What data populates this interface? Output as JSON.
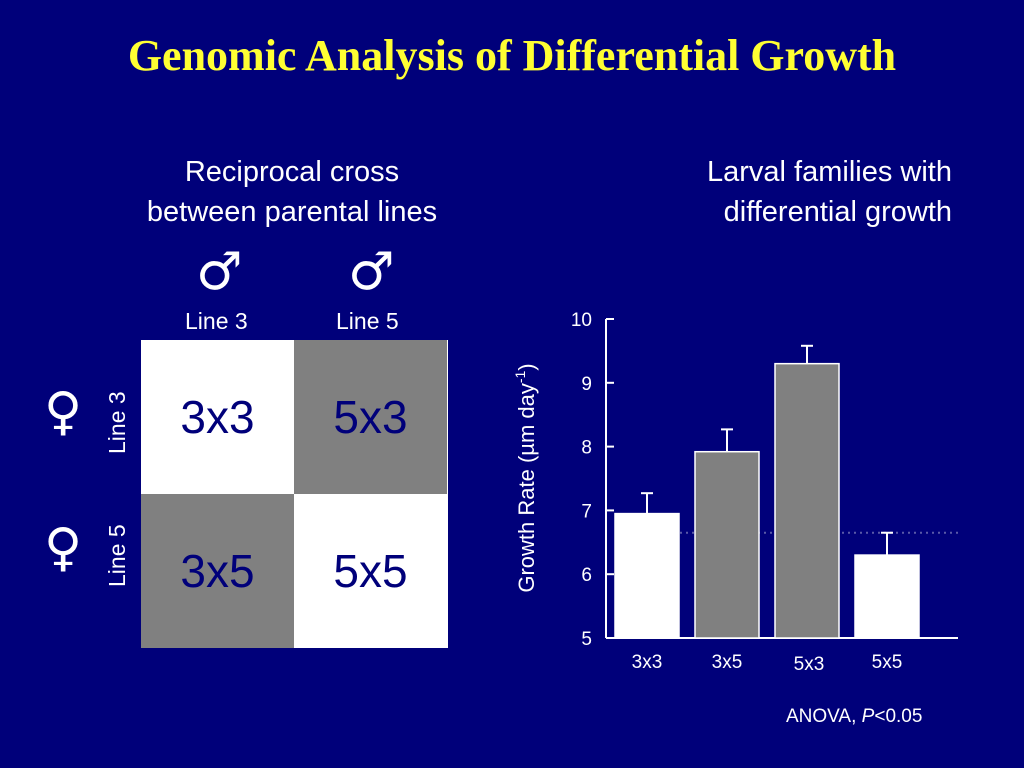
{
  "title": "Genomic Analysis of Differential Growth",
  "left_panel": {
    "subtitle_line1": "Reciprocal cross",
    "subtitle_line2": "between parental lines",
    "male_symbol": "♂",
    "female_symbol": "♀",
    "col_labels": [
      "Line 3",
      "Line 5"
    ],
    "row_labels": [
      "Line 3",
      "Line 5"
    ],
    "cells": [
      {
        "label": "3x3",
        "shade": "white"
      },
      {
        "label": "5x3",
        "shade": "gray"
      },
      {
        "label": "3x5",
        "shade": "gray"
      },
      {
        "label": "5x5",
        "shade": "white"
      }
    ]
  },
  "right_panel": {
    "subtitle_line1": "Larval families with",
    "subtitle_line2": "differential growth",
    "ylabel_text": "Growth Rate (µm day",
    "ylabel_sup": "-1",
    "ylabel_close": ")"
  },
  "chart_data": {
    "type": "bar",
    "categories": [
      "3x3",
      "3x5",
      "5x3",
      "5x5"
    ],
    "values": [
      6.95,
      7.92,
      9.3,
      6.3
    ],
    "errors": [
      0.32,
      0.35,
      0.28,
      0.35
    ],
    "bar_colors": [
      "#ffffff",
      "#808080",
      "#808080",
      "#ffffff"
    ],
    "ylabel": "Growth Rate (µm day-1)",
    "ylim": [
      5,
      10
    ],
    "yticks": [
      5,
      6,
      7,
      8,
      9,
      10
    ],
    "reference_line": 6.65
  },
  "footnote": {
    "prefix": "ANOVA, ",
    "p_italic": "P",
    "suffix": "<0.05"
  },
  "colors": {
    "background": "#00007a",
    "title": "#ffff33",
    "cell_gray": "#808080",
    "cell_white": "#ffffff",
    "cell_text": "#00007a"
  }
}
